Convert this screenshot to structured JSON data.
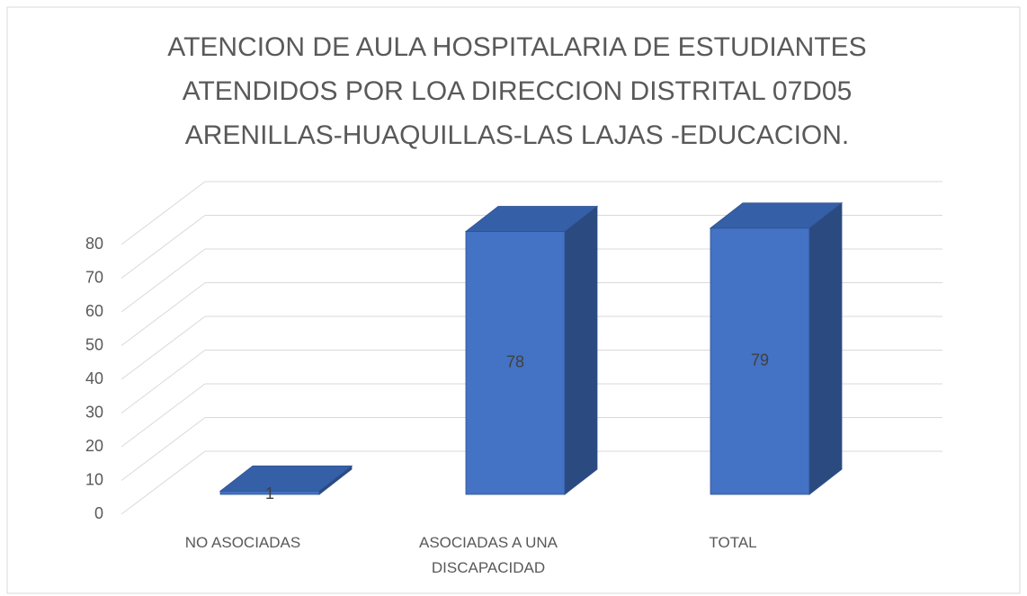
{
  "chart_data": {
    "type": "bar3d",
    "title": [
      "ATENCION DE AULA HOSPITALARIA  DE ESTUDIANTES",
      "ATENDIDOS POR LOA DIRECCION DISTRITAL 07D05",
      "ARENILLAS-HUAQUILLAS-LAS LAJAS -EDUCACION."
    ],
    "categories": [
      "NO ASOCIADAS",
      "ASOCIADAS A UNA DISCAPACIDAD",
      "TOTAL"
    ],
    "values": [
      1,
      78,
      79
    ],
    "color": "#4472c4",
    "ylim": [
      0,
      80
    ],
    "yticks": [
      0,
      10,
      20,
      30,
      40,
      50,
      60,
      70,
      80
    ],
    "grid": true
  }
}
